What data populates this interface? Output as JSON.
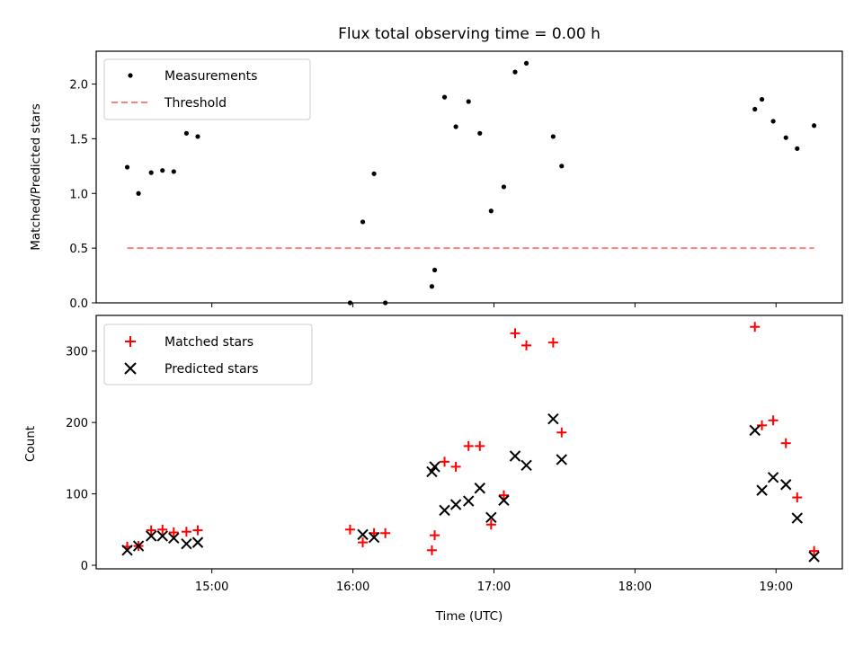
{
  "chart_data": [
    {
      "type": "scatter",
      "title": "Flux total observing time = 0.00 h",
      "xlabel": "",
      "ylabel": "Matched/Predicted stars",
      "x_unit": "time_utc_hours",
      "xlim": [
        14.18,
        19.47
      ],
      "ylim": [
        0,
        2.3
      ],
      "yticks": [
        0.0,
        0.5,
        1.0,
        1.5,
        2.0
      ],
      "ytick_labels": [
        "0.0",
        "0.5",
        "1.0",
        "1.5",
        "2.0"
      ],
      "xticks": [
        15,
        16,
        17,
        18,
        19
      ],
      "show_xtick_labels": false,
      "grid": false,
      "legend_position": "top-left",
      "series": [
        {
          "name": "Measurements",
          "marker": "dot",
          "color": "#000000",
          "x": [
            14.4,
            14.48,
            14.57,
            14.65,
            14.73,
            14.82,
            14.9,
            15.98,
            16.07,
            16.15,
            16.23,
            16.56,
            16.58,
            16.65,
            16.73,
            16.82,
            16.9,
            16.98,
            17.07,
            17.15,
            17.23,
            17.42,
            17.48,
            18.85,
            18.9,
            18.98,
            19.07,
            19.15,
            19.27
          ],
          "y": [
            1.24,
            1.0,
            1.19,
            1.21,
            1.2,
            1.55,
            1.52,
            0.0,
            0.74,
            1.18,
            0.0,
            0.15,
            0.3,
            1.88,
            1.61,
            1.84,
            1.55,
            0.84,
            1.06,
            2.11,
            2.19,
            1.52,
            1.25,
            1.77,
            1.86,
            1.66,
            1.51,
            1.41,
            1.62
          ]
        },
        {
          "name": "Threshold",
          "line_style": "dashed",
          "color": "#ff7f7f",
          "x": [
            14.4,
            19.27
          ],
          "y": [
            0.5,
            0.5
          ]
        }
      ]
    },
    {
      "type": "scatter",
      "title": "",
      "xlabel": "Time (UTC)",
      "ylabel": "Count",
      "x_unit": "time_utc_hours",
      "xlim": [
        14.18,
        19.47
      ],
      "ylim": [
        -5,
        350
      ],
      "yticks": [
        0,
        100,
        200,
        300
      ],
      "ytick_labels": [
        "0",
        "100",
        "200",
        "300"
      ],
      "xticks": [
        15,
        16,
        17,
        18,
        19
      ],
      "xtick_labels": [
        "15:00",
        "16:00",
        "17:00",
        "18:00",
        "19:00"
      ],
      "grid": false,
      "legend_position": "top-left",
      "series": [
        {
          "name": "Matched stars",
          "marker": "plus",
          "color": "#ff0000",
          "x": [
            14.4,
            14.48,
            14.57,
            14.65,
            14.73,
            14.82,
            14.9,
            15.98,
            16.07,
            16.15,
            16.23,
            16.56,
            16.58,
            16.65,
            16.73,
            16.82,
            16.9,
            16.98,
            17.07,
            17.15,
            17.23,
            17.42,
            17.48,
            18.85,
            18.9,
            18.98,
            19.07,
            19.15,
            19.27
          ],
          "y": [
            26,
            27,
            49,
            50,
            46,
            47,
            49,
            50,
            32,
            45,
            45,
            21,
            42,
            145,
            138,
            167,
            167,
            57,
            98,
            325,
            308,
            312,
            186,
            334,
            196,
            203,
            171,
            95,
            20
          ]
        },
        {
          "name": "Predicted stars",
          "marker": "x",
          "color": "#000000",
          "x": [
            14.4,
            14.48,
            14.57,
            14.65,
            14.73,
            14.82,
            14.9,
            16.07,
            16.15,
            16.56,
            16.58,
            16.65,
            16.73,
            16.82,
            16.9,
            16.98,
            17.07,
            17.15,
            17.23,
            17.42,
            17.48,
            18.85,
            18.9,
            18.98,
            19.07,
            19.15,
            19.27
          ],
          "y": [
            21,
            27,
            41,
            41,
            38,
            30,
            32,
            43,
            39,
            131,
            138,
            77,
            85,
            90,
            108,
            67,
            91,
            153,
            140,
            205,
            148,
            189,
            105,
            123,
            113,
            66,
            12
          ]
        }
      ]
    }
  ]
}
